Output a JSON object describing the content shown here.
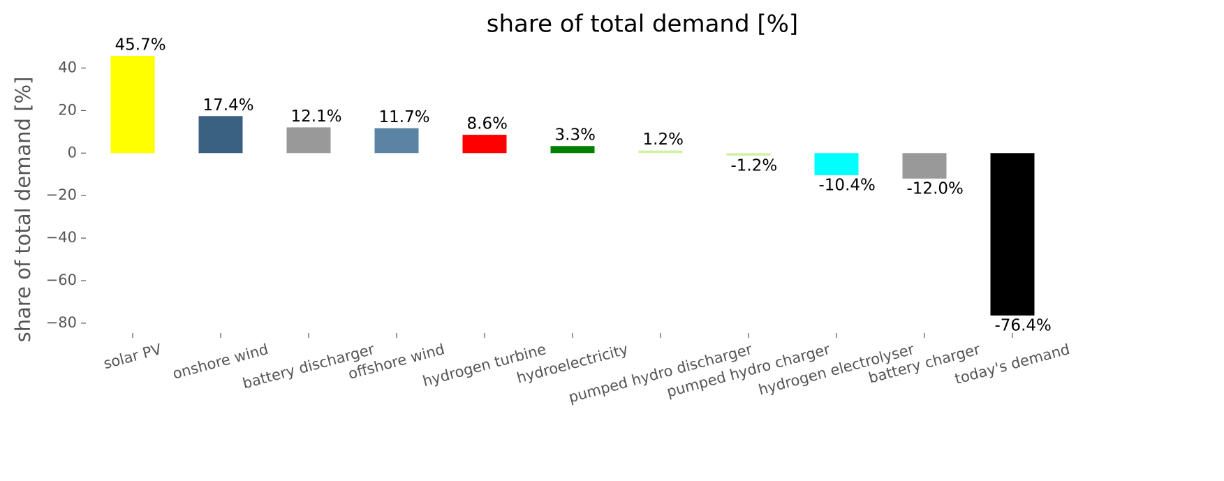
{
  "chart_data": {
    "type": "bar",
    "title": "share of total demand [%]",
    "y_label": "share of total demand [%]",
    "categories": [
      "solar PV",
      "onshore wind",
      "battery discharger",
      "offshore wind",
      "hydrogen turbine",
      "hydroelectricity",
      "pumped hydro discharger",
      "pumped hydro charger",
      "hydrogen electrolyser",
      "battery charger",
      "today's demand"
    ],
    "values": [
      45.7,
      17.4,
      12.1,
      11.7,
      8.6,
      3.3,
      1.2,
      -1.2,
      -10.4,
      -12.0,
      -76.4
    ],
    "value_labels": [
      "45.7%",
      "17.4%",
      "12.1%",
      "11.7%",
      "8.6%",
      "3.3%",
      "1.2%",
      "-1.2%",
      "-10.4%",
      "-12.0%",
      "-76.4%"
    ],
    "colors": [
      "#ffff00",
      "#3b6182",
      "#999999",
      "#5b83a3",
      "#ff0000",
      "#008000",
      "#d0f2a6",
      "#d0f2a6",
      "#00ffff",
      "#999999",
      "#000000"
    ],
    "ylim": [
      -82,
      50
    ],
    "yticks": [
      {
        "value": -80,
        "label": "−80"
      },
      {
        "value": -60,
        "label": "−60"
      },
      {
        "value": -40,
        "label": "−40"
      },
      {
        "value": -20,
        "label": "−20"
      },
      0,
      20,
      40
    ],
    "grid": false
  }
}
